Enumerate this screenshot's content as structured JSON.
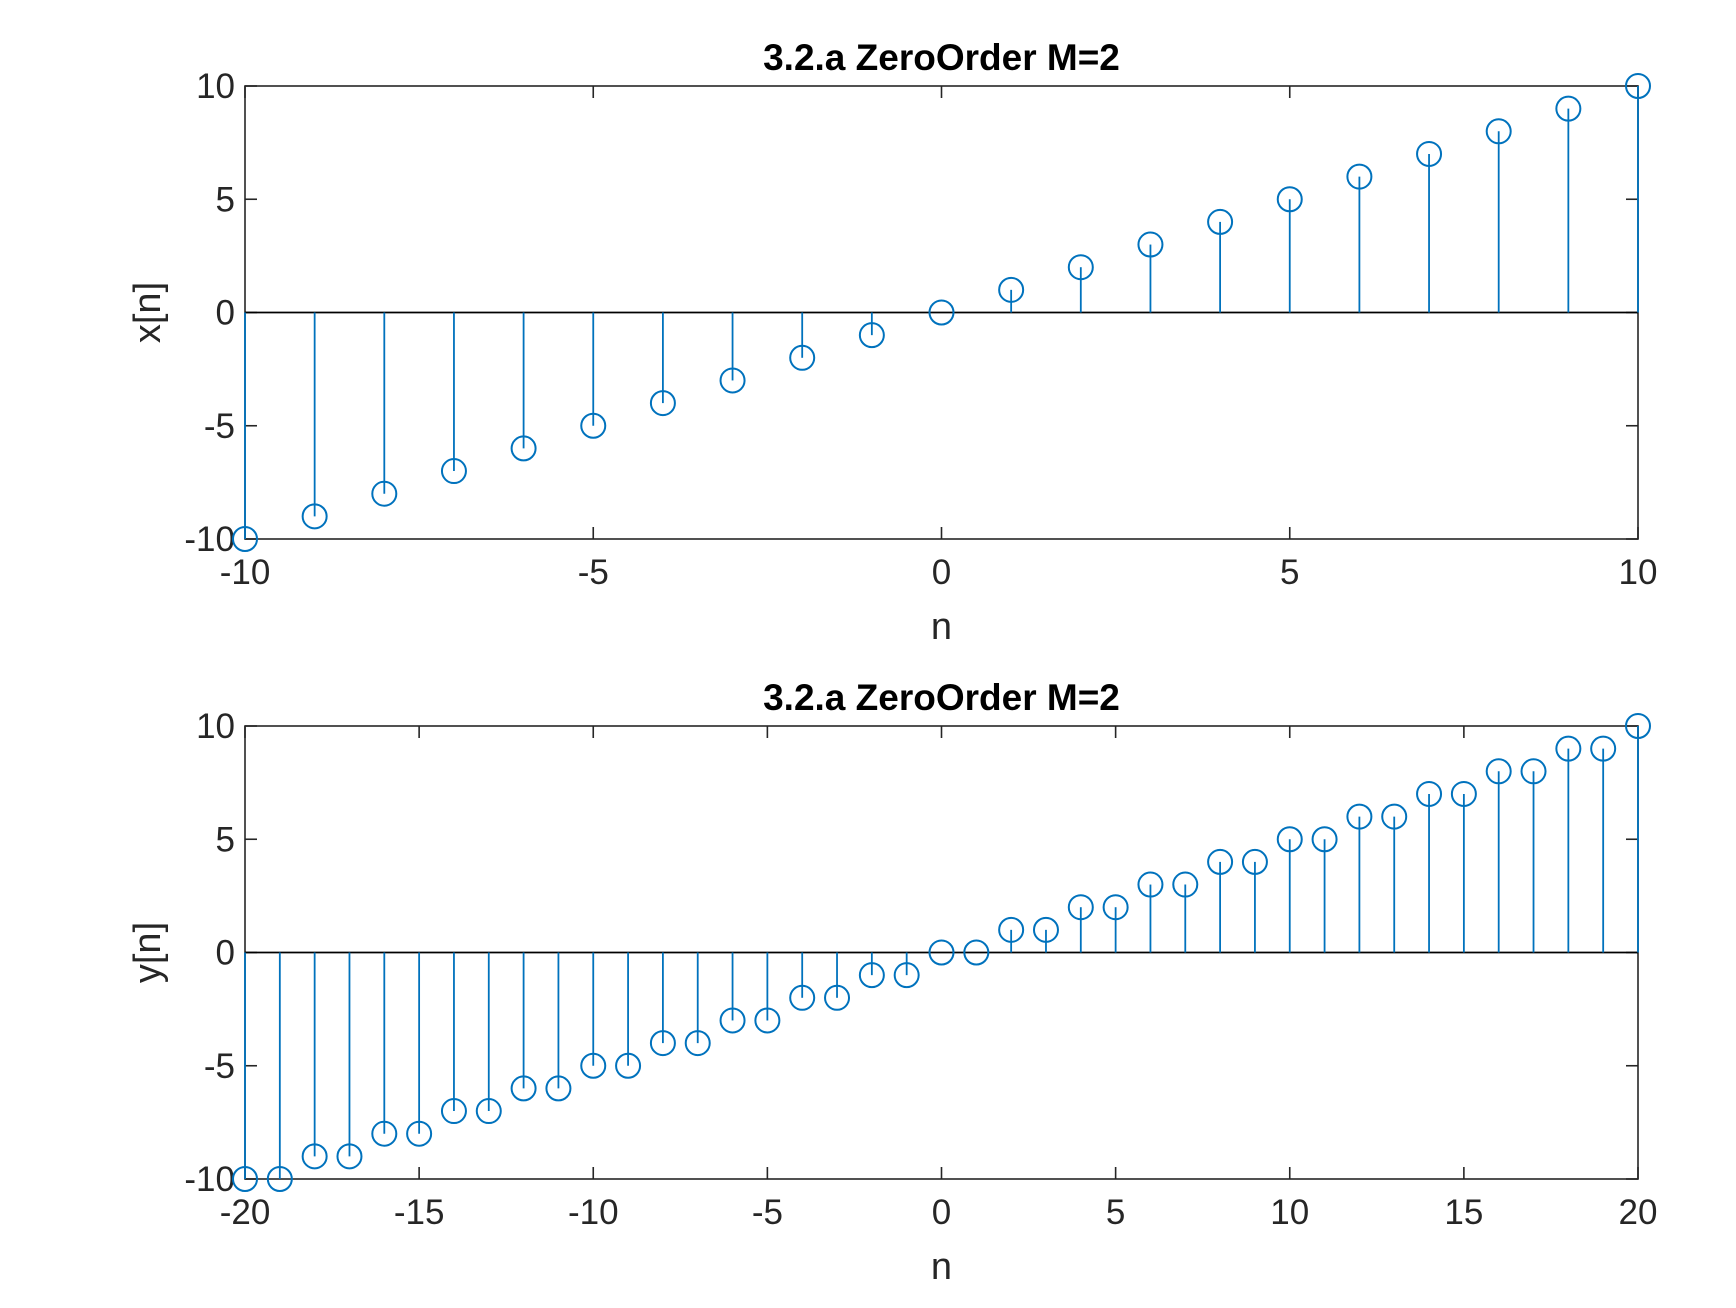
{
  "chart_data": [
    {
      "type": "stem",
      "title": "3.2.a ZeroOrder M=2",
      "xlabel": "n",
      "ylabel": "x[n]",
      "xlim": [
        -10,
        10
      ],
      "ylim": [
        -10,
        10
      ],
      "xticks": [
        -10,
        -5,
        0,
        5,
        10
      ],
      "yticks": [
        -10,
        -5,
        0,
        5,
        10
      ],
      "color": "#0072BD",
      "grid": false,
      "x": [
        -10,
        -9,
        -8,
        -7,
        -6,
        -5,
        -4,
        -3,
        -2,
        -1,
        0,
        1,
        2,
        3,
        4,
        5,
        6,
        7,
        8,
        9,
        10
      ],
      "y": [
        -10,
        -9,
        -8,
        -7,
        -6,
        -5,
        -4,
        -3,
        -2,
        -1,
        0,
        1,
        2,
        3,
        4,
        5,
        6,
        7,
        8,
        9,
        10
      ]
    },
    {
      "type": "stem",
      "title": "3.2.a ZeroOrder M=2",
      "xlabel": "n",
      "ylabel": "y[n]",
      "xlim": [
        -20,
        20
      ],
      "ylim": [
        -10,
        10
      ],
      "xticks": [
        -20,
        -15,
        -10,
        -5,
        0,
        5,
        10,
        15,
        20
      ],
      "yticks": [
        -10,
        -5,
        0,
        5,
        10
      ],
      "color": "#0072BD",
      "grid": false,
      "x": [
        -20,
        -19,
        -18,
        -17,
        -16,
        -15,
        -14,
        -13,
        -12,
        -11,
        -10,
        -9,
        -8,
        -7,
        -6,
        -5,
        -4,
        -3,
        -2,
        -1,
        0,
        1,
        2,
        3,
        4,
        5,
        6,
        7,
        8,
        9,
        10,
        11,
        12,
        13,
        14,
        15,
        16,
        17,
        18,
        19,
        20
      ],
      "y": [
        -10,
        -10,
        -9,
        -9,
        -8,
        -8,
        -7,
        -7,
        -6,
        -6,
        -5,
        -5,
        -4,
        -4,
        -3,
        -3,
        -2,
        -2,
        -1,
        -1,
        0,
        0,
        1,
        1,
        2,
        2,
        3,
        3,
        4,
        4,
        5,
        5,
        6,
        6,
        7,
        7,
        8,
        8,
        9,
        9,
        10
      ]
    }
  ]
}
